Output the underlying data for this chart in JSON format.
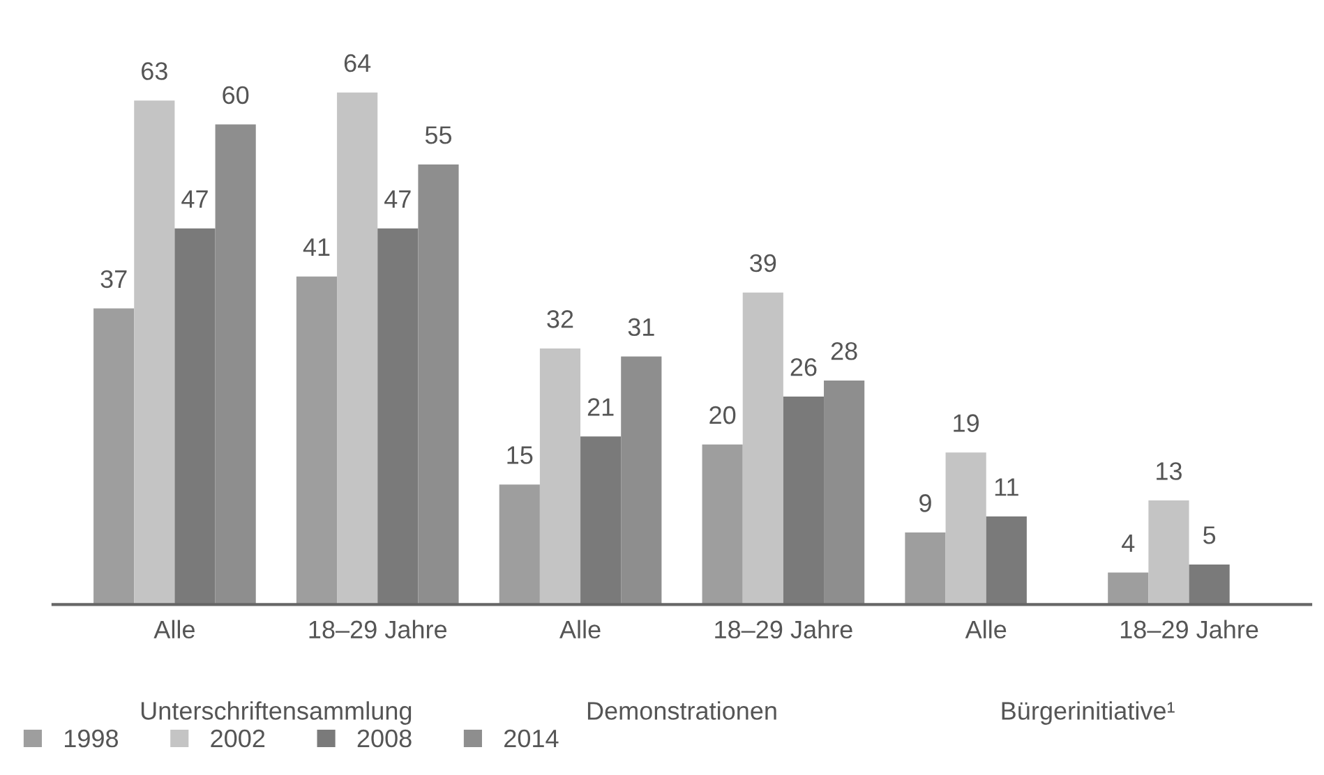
{
  "chart_data": {
    "type": "bar",
    "categories": [
      "Alle",
      "18–29 Jahre",
      "Alle",
      "18–29 Jahre",
      "Alle",
      "18–29 Jahre"
    ],
    "series": [
      {
        "name": "1998",
        "color": "#9e9e9e",
        "values": [
          37,
          41,
          15,
          20,
          9,
          4
        ]
      },
      {
        "name": "2002",
        "color": "#c4c4c4",
        "values": [
          63,
          64,
          32,
          39,
          19,
          13
        ]
      },
      {
        "name": "2008",
        "color": "#7a7a7a",
        "values": [
          47,
          47,
          21,
          26,
          11,
          5
        ]
      },
      {
        "name": "2014",
        "color": "#8e8e8e",
        "values": [
          60,
          55,
          31,
          28,
          null,
          null
        ]
      }
    ],
    "annotations": [
      "Unterschriftensammlung",
      "Demonstrationen",
      "Bürgerinitiative¹"
    ],
    "data_labels": true,
    "legend": "bottom left",
    "grid": false
  }
}
